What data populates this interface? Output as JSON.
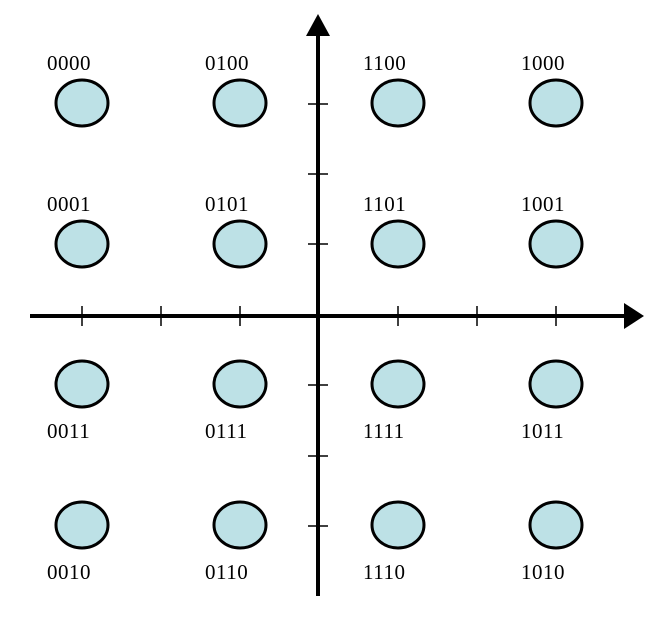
{
  "diagram": {
    "type": "qam16-constellation",
    "point_color": "#bde1e6",
    "outline_color": "#000000",
    "columns": [
      -3,
      -1,
      1,
      3
    ],
    "rows": [
      3,
      1,
      -1,
      -3
    ],
    "points": [
      {
        "i": -3,
        "q": 3,
        "code": "0000"
      },
      {
        "i": -1,
        "q": 3,
        "code": "0100"
      },
      {
        "i": 1,
        "q": 3,
        "code": "1100"
      },
      {
        "i": 3,
        "q": 3,
        "code": "1000"
      },
      {
        "i": -3,
        "q": 1,
        "code": "0001"
      },
      {
        "i": -1,
        "q": 1,
        "code": "0101"
      },
      {
        "i": 1,
        "q": 1,
        "code": "1101"
      },
      {
        "i": 3,
        "q": 1,
        "code": "1001"
      },
      {
        "i": -3,
        "q": -1,
        "code": "0011"
      },
      {
        "i": -1,
        "q": -1,
        "code": "0111"
      },
      {
        "i": 1,
        "q": -1,
        "code": "1111"
      },
      {
        "i": 3,
        "q": -1,
        "code": "1011"
      },
      {
        "i": -3,
        "q": -3,
        "code": "0010"
      },
      {
        "i": -1,
        "q": -3,
        "code": "0110"
      },
      {
        "i": 1,
        "q": -3,
        "code": "1110"
      },
      {
        "i": 3,
        "q": -3,
        "code": "1010"
      }
    ]
  }
}
